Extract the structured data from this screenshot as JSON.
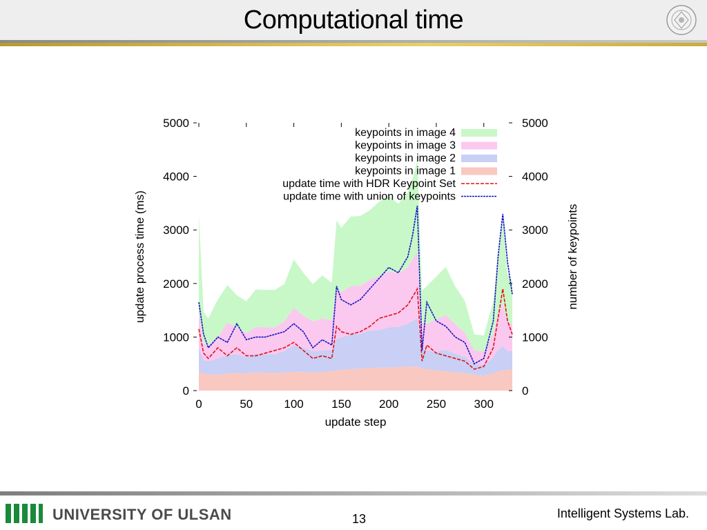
{
  "slide": {
    "title": "Computational time",
    "page_number": "13",
    "university": "UNIVERSITY OF ULSAN",
    "lab": "Intelligent Systems Lab."
  },
  "colors": {
    "accent_gold": "#d9bb45",
    "image1": "#f9c8c0",
    "image2": "#c9cff5",
    "image3": "#fbc8f0",
    "image4": "#c8f8c8",
    "hdr_line": "#e01010",
    "union_line": "#1010c0",
    "logo_green": "#1a8a3a"
  },
  "chart_data": {
    "type": "area",
    "xlabel": "update step",
    "ylabel_left": "update process time (ms)",
    "ylabel_right": "number of keypoints",
    "xlim": [
      0,
      330
    ],
    "ylim_left": [
      0,
      5000
    ],
    "ylim_right": [
      0,
      5000
    ],
    "x_ticks": [
      "0",
      "50",
      "100",
      "150",
      "200",
      "250",
      "300"
    ],
    "y_ticks_left": [
      "0",
      "1000",
      "2000",
      "3000",
      "4000",
      "5000"
    ],
    "y_ticks_right": [
      "0",
      "1000",
      "2000",
      "3000",
      "4000",
      "5000"
    ],
    "legend_position": "top-right",
    "x": [
      0,
      5,
      10,
      20,
      30,
      40,
      50,
      60,
      70,
      80,
      90,
      100,
      110,
      120,
      130,
      140,
      145,
      150,
      160,
      170,
      180,
      190,
      200,
      210,
      220,
      225,
      230,
      235,
      240,
      250,
      260,
      270,
      280,
      290,
      300,
      310,
      315,
      320,
      325,
      330
    ],
    "stacked_series": [
      {
        "name": "keypoints in image 1",
        "values": [
          350,
          320,
          300,
          300,
          320,
          330,
          320,
          340,
          330,
          330,
          340,
          350,
          350,
          340,
          350,
          360,
          380,
          390,
          400,
          410,
          420,
          430,
          430,
          440,
          450,
          450,
          450,
          420,
          400,
          380,
          360,
          340,
          330,
          300,
          280,
          320,
          360,
          380,
          390,
          390
        ]
      },
      {
        "name": "keypoints in image 2",
        "values": [
          450,
          250,
          250,
          300,
          350,
          350,
          300,
          350,
          350,
          350,
          400,
          500,
          450,
          400,
          400,
          400,
          600,
          600,
          650,
          650,
          700,
          700,
          750,
          750,
          800,
          850,
          900,
          400,
          350,
          350,
          400,
          350,
          300,
          200,
          200,
          300,
          400,
          450,
          350,
          350
        ]
      },
      {
        "name": "keypoints in image 3",
        "values": [
          700,
          300,
          300,
          400,
          600,
          500,
          450,
          500,
          500,
          500,
          550,
          700,
          600,
          550,
          600,
          550,
          900,
          850,
          900,
          900,
          950,
          1000,
          1050,
          1000,
          1050,
          1150,
          1250,
          450,
          500,
          600,
          650,
          550,
          450,
          250,
          250,
          450,
          700,
          800,
          550,
          500
        ]
      },
      {
        "name": "keypoints in image 4",
        "values": [
          1800,
          600,
          500,
          700,
          700,
          600,
          600,
          700,
          700,
          700,
          700,
          900,
          800,
          700,
          800,
          700,
          1300,
          1200,
          1300,
          1300,
          1300,
          1400,
          1400,
          1300,
          1400,
          1500,
          1700,
          600,
          700,
          800,
          900,
          700,
          600,
          300,
          300,
          600,
          1000,
          1600,
          900,
          800
        ]
      }
    ],
    "series": [
      {
        "name": "update time with HDR Keypoint Set",
        "values": [
          1150,
          700,
          600,
          800,
          650,
          800,
          650,
          650,
          700,
          750,
          800,
          900,
          750,
          600,
          650,
          600,
          1200,
          1100,
          1050,
          1100,
          1200,
          1350,
          1400,
          1450,
          1600,
          1750,
          1900,
          550,
          850,
          700,
          650,
          600,
          550,
          400,
          450,
          800,
          1350,
          1900,
          1300,
          1050
        ]
      },
      {
        "name": "update time with union of keypoints",
        "values": [
          1650,
          1050,
          800,
          1000,
          900,
          1250,
          950,
          1000,
          1000,
          1050,
          1100,
          1250,
          1100,
          800,
          950,
          850,
          1950,
          1700,
          1600,
          1700,
          1900,
          2100,
          2300,
          2200,
          2500,
          2900,
          3450,
          750,
          1650,
          1300,
          1200,
          1000,
          900,
          500,
          600,
          1300,
          2500,
          3300,
          2400,
          1800
        ]
      }
    ]
  }
}
